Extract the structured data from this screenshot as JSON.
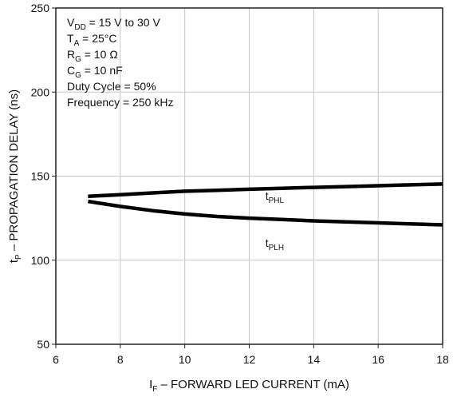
{
  "chart_data": {
    "type": "line",
    "title": "",
    "xlabel": {
      "main": "I",
      "sub": "F",
      "rest": " – FORWARD LED CURRENT (mA)"
    },
    "ylabel": {
      "main": "t",
      "sub": "P",
      "rest": " – PROPAGATION DELAY (ns)"
    },
    "xlim": [
      6,
      18
    ],
    "ylim": [
      50,
      250
    ],
    "xticks": [
      6,
      8,
      10,
      12,
      14,
      16,
      18
    ],
    "yticks": [
      50,
      100,
      150,
      200,
      250
    ],
    "xtick_labels": [
      "6",
      "8",
      "10",
      "12",
      "14",
      "16",
      "18"
    ],
    "ytick_labels": [
      "50",
      "100",
      "150",
      "200",
      "250"
    ],
    "grid": true,
    "conditions": [
      {
        "main": "V",
        "sub": "DD",
        "rest": " = 15 V to 30 V"
      },
      {
        "main": "T",
        "sub": "A",
        "rest": " = 25°C"
      },
      {
        "main": "R",
        "sub": "G",
        "rest": " = 10 Ω"
      },
      {
        "main": "C",
        "sub": "G",
        "rest": " = 10 nF"
      },
      {
        "main": "Duty Cycle = 50%",
        "sub": "",
        "rest": ""
      },
      {
        "main": "Frequency = 250 kHz",
        "sub": "",
        "rest": ""
      }
    ],
    "series": [
      {
        "name": {
          "main": "t",
          "sub": "PHL"
        },
        "x": [
          7,
          8,
          9,
          10,
          11,
          12,
          13,
          14,
          15,
          16,
          17,
          18
        ],
        "y": [
          138,
          139,
          140,
          141,
          141.6,
          142.2,
          142.8,
          143.3,
          143.8,
          144.3,
          144.8,
          145.3
        ],
        "label_at": [
          12.5,
          136
        ]
      },
      {
        "name": {
          "main": "t",
          "sub": "PLH"
        },
        "x": [
          7,
          8,
          9,
          10,
          11,
          12,
          13,
          14,
          15,
          16,
          17,
          18
        ],
        "y": [
          135,
          132,
          129.5,
          127.5,
          126,
          125,
          124.2,
          123.4,
          122.8,
          122.2,
          121.6,
          121
        ],
        "label_at": [
          12.5,
          108
        ]
      }
    ],
    "colors": {
      "line": "#000000",
      "grid": "#c8c8c8",
      "axis": "#222222"
    }
  }
}
